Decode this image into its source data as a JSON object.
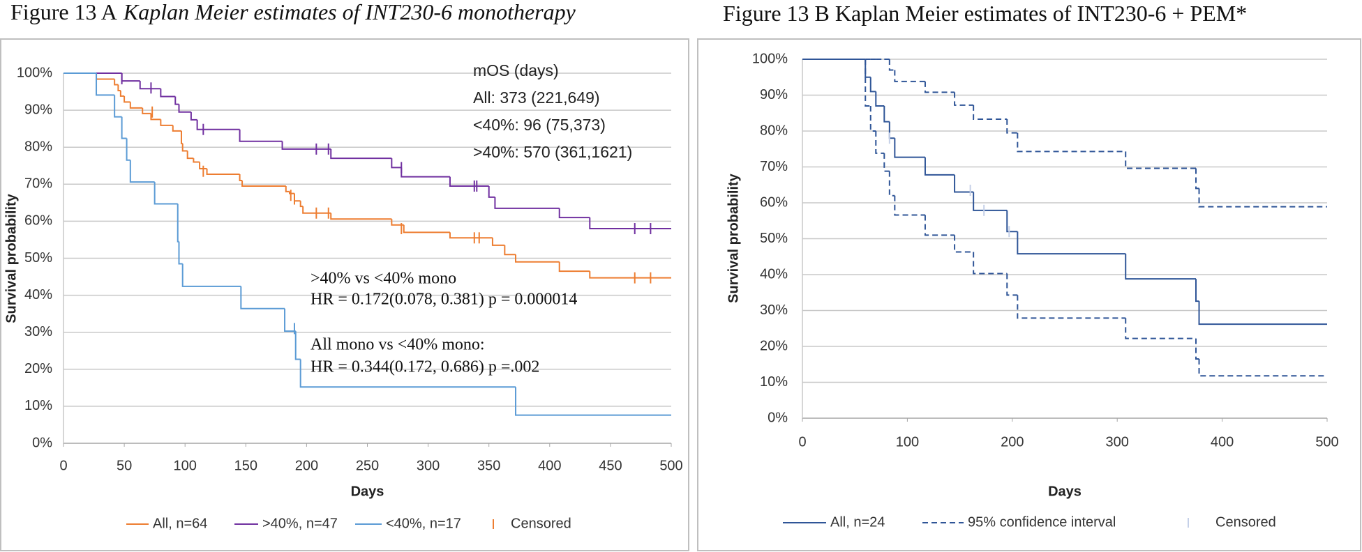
{
  "chart_data": [
    {
      "type": "step",
      "title": "Figure 13 A",
      "title_italic": "Kaplan Meier estimates of INT230-6 monotherapy",
      "xlabel": "Days",
      "ylabel": "Survival probability",
      "xlim": [
        0,
        500
      ],
      "xticks": [
        0,
        50,
        100,
        150,
        200,
        250,
        300,
        350,
        400,
        450,
        500
      ],
      "ylim": [
        0,
        100
      ],
      "yticks": [
        {
          "value": 0,
          "label": "0%"
        },
        {
          "value": 10,
          "label": "10%"
        },
        {
          "value": 20,
          "label": "20%"
        },
        {
          "value": 30,
          "label": "30%"
        },
        {
          "value": 40,
          "label": "40%"
        },
        {
          "value": 50,
          "label": "50%"
        },
        {
          "value": 60,
          "label": "60%"
        },
        {
          "value": 70,
          "label": "70%"
        },
        {
          "value": 80,
          "label": "80%"
        },
        {
          "value": 90,
          "label": "90%"
        },
        {
          "value": 100,
          "label": "100%"
        }
      ],
      "grid": true,
      "series": [
        {
          "name": "All, n=64",
          "color": "#ed7d31",
          "x": [
            0,
            27,
            42,
            45,
            47,
            50,
            55,
            65,
            72,
            80,
            90,
            97,
            98,
            102,
            107,
            112,
            118,
            145,
            147,
            183,
            186,
            190,
            195,
            197,
            220,
            270,
            280,
            318,
            353,
            363,
            372,
            408,
            433
          ],
          "values": [
            100,
            98.4,
            96.9,
            95.3,
            93.8,
            92.2,
            90.6,
            89.1,
            87.5,
            85.9,
            84.4,
            81,
            79,
            77,
            76,
            74.2,
            72.7,
            71,
            69.5,
            68,
            67.5,
            65.5,
            64,
            62.2,
            60.6,
            59,
            57,
            55.5,
            53.5,
            51,
            49,
            46.5,
            44.7
          ],
          "censored_x": [
            73,
            115,
            187,
            190,
            208,
            218,
            278,
            338,
            342,
            470,
            483
          ],
          "censored_values": [
            89.5,
            73.5,
            67,
            66,
            62.2,
            62.2,
            58,
            55.5,
            55.5,
            44.7,
            44.7
          ]
        },
        {
          "name": ">40%, n=47",
          "color": "#7030a0",
          "x": [
            0,
            48,
            63,
            80,
            92,
            95,
            105,
            110,
            145,
            180,
            220,
            270,
            278,
            318,
            350,
            355,
            408,
            433
          ],
          "values": [
            100,
            97.9,
            95.8,
            93.7,
            91.6,
            89.5,
            87.4,
            84.8,
            81.6,
            79.5,
            77,
            74.5,
            72,
            69.5,
            66.5,
            63.5,
            61,
            58
          ],
          "censored_x": [
            48,
            72,
            115,
            208,
            218,
            278,
            338,
            340,
            470,
            483
          ],
          "censored_values": [
            98.5,
            96,
            84.8,
            79.5,
            79.5,
            74.5,
            69.5,
            69.5,
            58,
            58
          ]
        },
        {
          "name": "<40%, n=17",
          "color": "#5b9bd5",
          "x": [
            0,
            27,
            42,
            48,
            52,
            55,
            75,
            94,
            95,
            98,
            146,
            182,
            191,
            195,
            372
          ],
          "values": [
            100,
            94.1,
            88.2,
            82.4,
            76.5,
            70.6,
            64.7,
            54.5,
            48.5,
            42.4,
            36.4,
            30.3,
            22.7,
            15.2,
            7.6
          ],
          "censored_x": [
            190
          ],
          "censored_values": [
            31
          ]
        }
      ],
      "legend_censored": "Censored",
      "censored_color": "#ed7d31",
      "annotations": [
        "mOS (days)",
        "All: 373 (221,649)",
        "<40%: 96 (75,373)",
        ">40%: 570 (361,1621)"
      ],
      "hr_annotations": [
        ">40% vs <40% mono",
        "HR = 0.172(0.078, 0.381) p = 0.000014",
        "All mono vs <40% mono:",
        "HR = 0.344(0.172, 0.686) p =.002"
      ]
    },
    {
      "type": "step",
      "title": "Figure 13 B Kaplan Meier estimates of INT230-6 + PEM*",
      "xlabel": "Days",
      "ylabel": "Survival probability",
      "xlim": [
        0,
        500
      ],
      "xticks": [
        0,
        100,
        200,
        300,
        400,
        500
      ],
      "ylim": [
        0,
        100
      ],
      "yticks": [
        {
          "value": 0,
          "label": "0%"
        },
        {
          "value": 10,
          "label": "10%"
        },
        {
          "value": 20,
          "label": "20%"
        },
        {
          "value": 30,
          "label": "30%"
        },
        {
          "value": 40,
          "label": "40%"
        },
        {
          "value": 50,
          "label": "50%"
        },
        {
          "value": 60,
          "label": "60%"
        },
        {
          "value": 70,
          "label": "70%"
        },
        {
          "value": 80,
          "label": "80%"
        },
        {
          "value": 90,
          "label": "90%"
        },
        {
          "value": 100,
          "label": "100%"
        }
      ],
      "grid": true,
      "series": [
        {
          "name": "All, n=24",
          "color": "#2f5597",
          "x": [
            0,
            60,
            65,
            70,
            78,
            83,
            88,
            117,
            145,
            163,
            195,
            205,
            308,
            375,
            378
          ],
          "values": [
            100,
            95,
            91,
            87,
            82.6,
            78,
            72.7,
            67.8,
            63,
            57.9,
            52,
            45.8,
            38.8,
            32.6,
            26.2
          ],
          "censored_x": [
            83,
            160,
            173,
            197
          ],
          "censored_values": [
            78,
            63.5,
            57.9,
            52
          ]
        },
        {
          "name": "95% confidence interval",
          "color": "#2f5597",
          "dashed": true,
          "x": [
            0,
            60,
            65,
            70,
            78,
            83,
            88,
            117,
            145,
            163,
            195,
            205,
            308,
            375,
            378
          ],
          "upper": [
            100,
            100,
            100,
            100,
            100,
            97,
            93.8,
            90.8,
            87.2,
            83.3,
            79.5,
            74.3,
            69.6,
            64,
            58.9
          ],
          "lower": [
            100,
            87,
            80,
            73.8,
            68.8,
            62,
            56.6,
            51,
            46.3,
            40.3,
            34.3,
            27.9,
            22.2,
            16.5,
            11.8
          ]
        }
      ],
      "legend_censored": "Censored",
      "censored_color": "#c5d0e8"
    }
  ]
}
